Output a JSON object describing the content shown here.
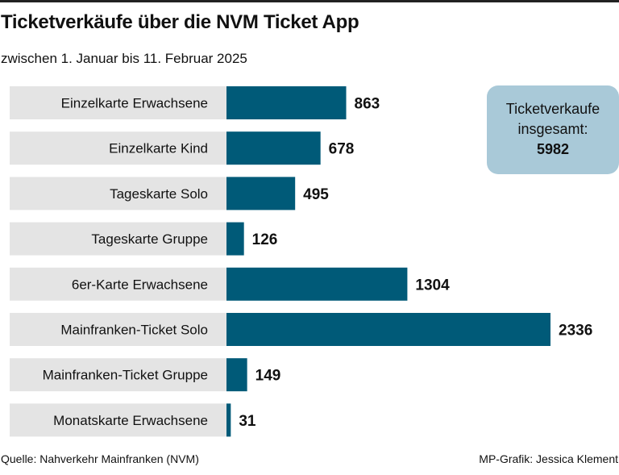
{
  "header": {
    "title": "Ticketverkäufe über die NVM Ticket App",
    "subtitle": "zwischen 1. Januar bis 11. Februar 2025"
  },
  "summary": {
    "line1": "Ticketverkaufe",
    "line2": "insgesamt:",
    "value": "5982"
  },
  "footer": {
    "source": "Quelle: Nahverkehr Mainfranken (NVM)",
    "credit": "MP-Grafik: Jessica Klement"
  },
  "colors": {
    "bar": "#005a78",
    "label_background": "#e4e4e4",
    "summary_background": "#a9c9d8"
  },
  "chart_data": {
    "type": "bar",
    "orientation": "horizontal",
    "title": "",
    "xlabel": "",
    "ylabel": "",
    "categories": [
      "Einzelkarte Erwachsene",
      "Einzelkarte Kind",
      "Tageskarte Solo",
      "Tageskarte Gruppe",
      "6er-Karte Erwachsene",
      "Mainfranken-Ticket Solo",
      "Mainfranken-Ticket Gruppe",
      "Monatskarte Erwachsene"
    ],
    "values": [
      863,
      678,
      495,
      126,
      1304,
      2336,
      149,
      31
    ],
    "xlim": [
      0,
      2336
    ],
    "grid": false,
    "legend": "none"
  }
}
